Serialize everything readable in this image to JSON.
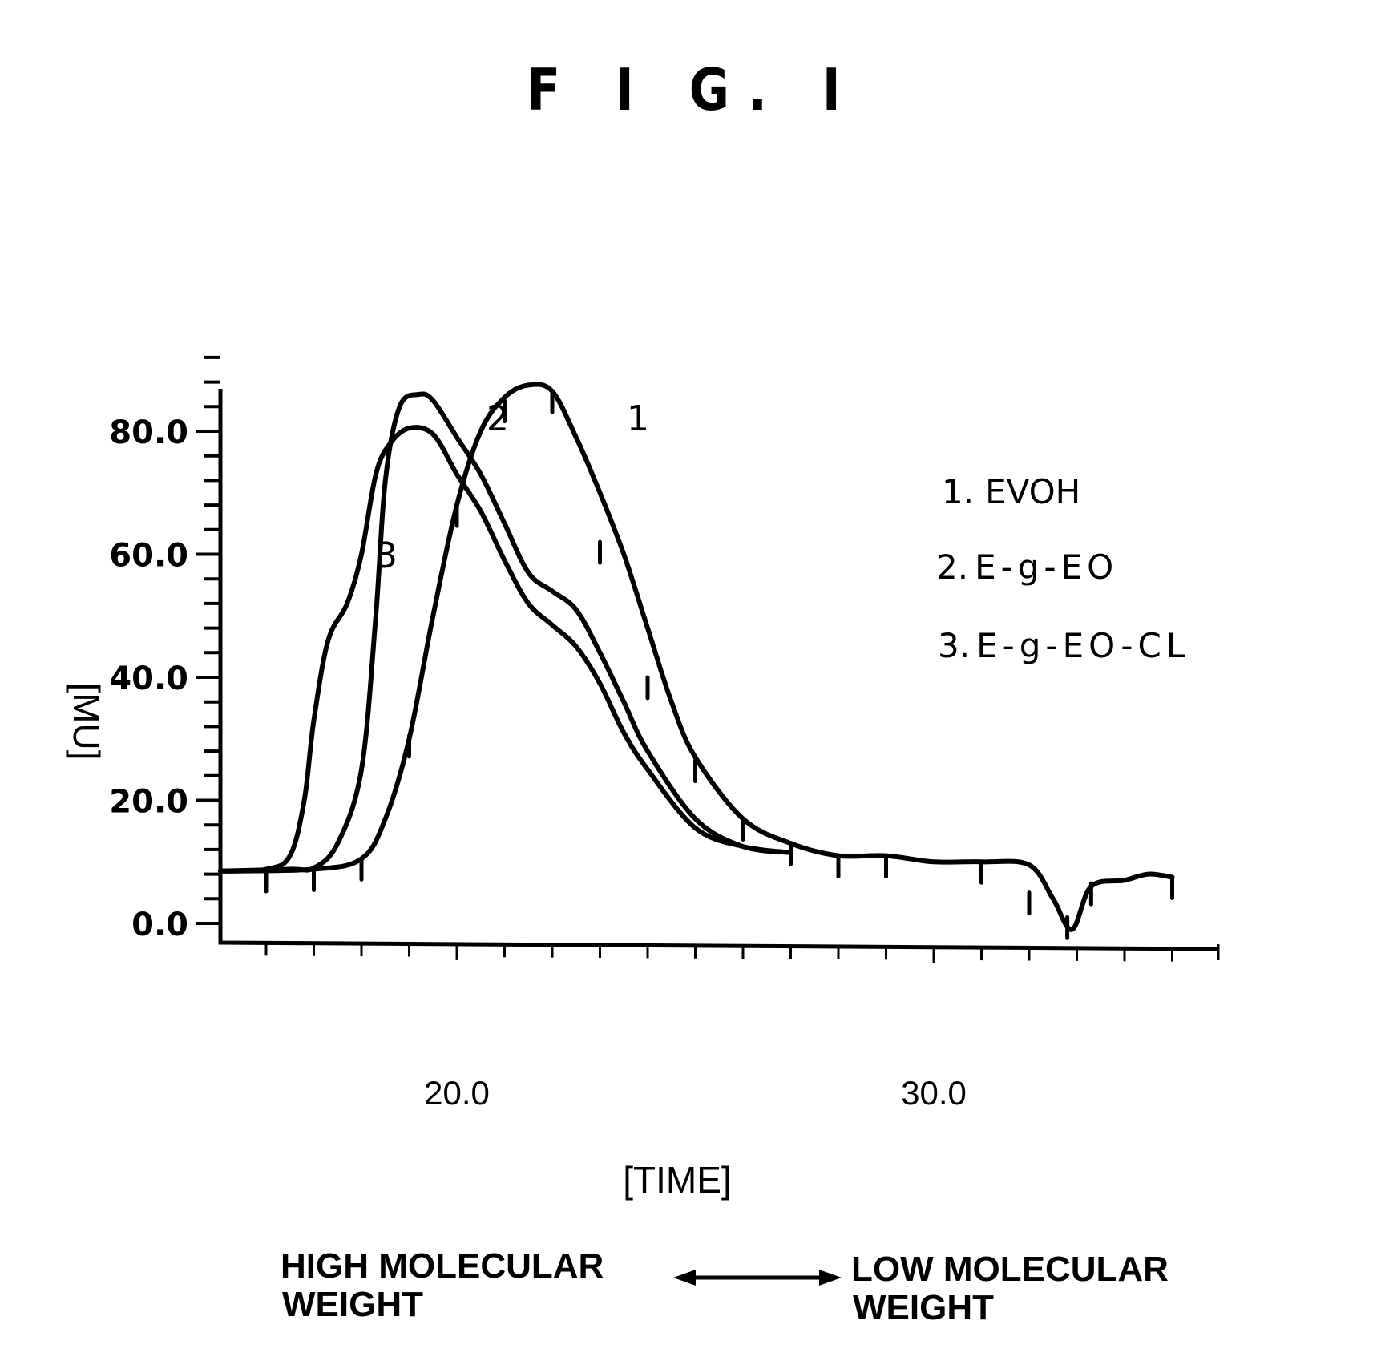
{
  "figure": {
    "title": "F I G. I"
  },
  "chart_data": {
    "type": "line",
    "title": "FIG. 1",
    "xlabel": "[TIME]",
    "ylabel": "[MU]",
    "xlim": [
      15.0,
      36.0
    ],
    "ylim": [
      -2.0,
      92.0
    ],
    "x_ticks_major": [
      20.0,
      30.0
    ],
    "x_tick_labels": [
      "20.0",
      "30.0"
    ],
    "x_ticks_minor_step": 1.0,
    "y_ticks_major": [
      0.0,
      20.0,
      40.0,
      60.0,
      80.0
    ],
    "y_tick_labels": [
      "0.0",
      "20.0",
      "40.0",
      "60.0",
      "80.0"
    ],
    "y_ticks_minor_step": 4.0,
    "grid": false,
    "legend_position": "upper right (inside plot)",
    "legend": [
      "1. EVOH",
      "2. E-g-EO",
      "3. E-g-EO-CL"
    ],
    "series_labels_on_curves": [
      "1",
      "2",
      "3"
    ],
    "series": [
      {
        "name": "1. EVOH",
        "label": "1",
        "x": [
          15.0,
          17.0,
          18.0,
          18.5,
          19.0,
          19.5,
          20.0,
          20.5,
          21.0,
          21.5,
          22.0,
          22.5,
          23.0,
          23.5,
          24.0,
          24.5,
          25.0,
          26.0,
          27.0,
          28.0,
          29.0,
          30.0,
          31.0,
          32.0,
          32.5,
          32.9,
          33.3,
          34.0,
          34.5,
          35.0
        ],
        "y": [
          8.5,
          8.8,
          10.5,
          17.0,
          30.0,
          50.0,
          68.0,
          80.0,
          85.5,
          87.5,
          86.5,
          79.0,
          70.0,
          60.0,
          48.0,
          36.0,
          27.0,
          17.0,
          13.0,
          11.0,
          11.0,
          10.0,
          10.0,
          9.5,
          4.0,
          -1.0,
          6.0,
          7.0,
          8.0,
          7.5
        ]
      },
      {
        "name": "2. E-g-EO",
        "label": "2",
        "x": [
          15.0,
          16.5,
          17.0,
          17.5,
          18.0,
          18.3,
          18.5,
          18.8,
          19.2,
          19.5,
          20.0,
          20.5,
          21.0,
          21.5,
          22.0,
          22.5,
          23.0,
          23.5,
          24.0,
          25.0,
          26.0,
          27.0
        ],
        "y": [
          8.5,
          8.8,
          9.0,
          13.0,
          25.0,
          50.0,
          72.0,
          84.0,
          86.0,
          85.0,
          79.0,
          73.0,
          65.0,
          57.0,
          54.0,
          51.0,
          44.0,
          36.0,
          28.0,
          17.0,
          12.5,
          11.5
        ]
      },
      {
        "name": "3. E-g-EO-CL",
        "label": "3",
        "x": [
          15.0,
          16.0,
          16.5,
          16.8,
          17.0,
          17.3,
          17.7,
          18.0,
          18.3,
          18.6,
          19.0,
          19.5,
          20.0,
          20.5,
          21.0,
          21.5,
          22.0,
          22.5,
          23.0,
          23.5,
          24.0,
          25.0,
          26.0,
          27.0
        ],
        "y": [
          8.5,
          8.8,
          11.0,
          20.0,
          33.0,
          46.0,
          52.0,
          60.0,
          73.0,
          78.0,
          80.5,
          79.5,
          73.0,
          67.0,
          59.0,
          52.0,
          48.5,
          45.0,
          39.0,
          31.0,
          25.0,
          15.5,
          12.5,
          11.5
        ]
      }
    ],
    "annotations": [
      "HIGH MOLECULAR WEIGHT",
      "LOW MOLECULAR WEIGHT",
      "double-headed arrow between labels"
    ]
  },
  "axes": {
    "y_label": "[MU]",
    "x_label": "[TIME]",
    "y_tick_labels": [
      "80.0",
      "60.0",
      "40.0",
      "20.0",
      "0.0"
    ],
    "x_tick_labels": [
      "20.0",
      "30.0"
    ]
  },
  "legend": {
    "items": [
      {
        "num": "1.",
        "text": "EVOH"
      },
      {
        "num": "2.",
        "text": "E-g-EO"
      },
      {
        "num": "3.",
        "text": "E-g-EO-CL"
      }
    ]
  },
  "curve_labels": [
    "1",
    "2",
    "3"
  ],
  "footer": {
    "left_line1": "HIGH MOLECULAR",
    "left_line2": "WEIGHT",
    "right_line1": "LOW MOLECULAR",
    "right_line2": "WEIGHT"
  }
}
